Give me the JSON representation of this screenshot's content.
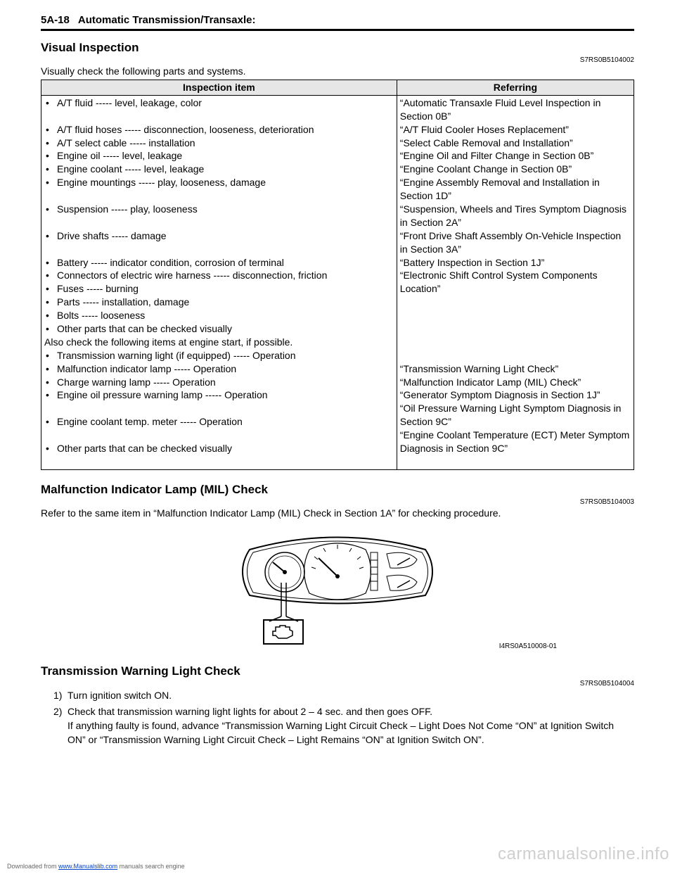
{
  "header": {
    "page_num": "5A-18",
    "title": "Automatic Transmission/Transaxle:"
  },
  "visual_inspection": {
    "heading": "Visual Inspection",
    "code": "S7RS0B5104002",
    "intro": "Visually check the following parts and systems.",
    "table": {
      "col_left": "Inspection item",
      "col_right": "Referring",
      "rows": [
        {
          "item": "A/T fluid ----- level, leakage, color",
          "ref": "“Automatic Transaxle Fluid Level Inspection in Section 0B”"
        },
        {
          "item": "A/T fluid hoses ----- disconnection, looseness, deterioration",
          "ref": "“A/T Fluid Cooler Hoses Replacement”"
        },
        {
          "item": "A/T select cable ----- installation",
          "ref": "“Select Cable Removal and Installation”"
        },
        {
          "item": "Engine oil ----- level, leakage",
          "ref": "“Engine Oil and Filter Change in Section 0B”"
        },
        {
          "item": "Engine coolant ----- level, leakage",
          "ref": "“Engine Coolant Change in Section 0B”"
        },
        {
          "item": "Engine mountings ----- play, looseness, damage",
          "ref": "“Engine Assembly Removal and Installation in Section 1D”"
        },
        {
          "item": "Suspension ----- play, looseness",
          "ref": "“Suspension, Wheels and Tires Symptom Diagnosis in Section 2A”"
        },
        {
          "item": "Drive shafts ----- damage",
          "ref": "“Front Drive Shaft Assembly On-Vehicle Inspection in Section 3A”"
        },
        {
          "item": "Battery ----- indicator condition, corrosion of terminal",
          "ref": "“Battery Inspection in Section 1J”"
        },
        {
          "item": "Connectors of electric wire harness ----- disconnection, friction",
          "ref": "“Electronic Shift Control System Components Location”"
        },
        {
          "item": "Fuses ----- burning",
          "ref": ""
        },
        {
          "item": "Parts ----- installation, damage",
          "ref": ""
        },
        {
          "item": "Bolts ----- looseness",
          "ref": ""
        },
        {
          "item": "Other parts that can be checked visually",
          "ref": ""
        }
      ],
      "mid_text": "Also check the following items at engine start, if possible.",
      "rows2": [
        {
          "item": "Transmission warning light (if equipped) ----- Operation",
          "ref": "“Transmission Warning Light Check”"
        },
        {
          "item": "Malfunction indicator lamp ----- Operation",
          "ref": "“Malfunction Indicator Lamp (MIL) Check”"
        },
        {
          "item": "Charge warning lamp ----- Operation",
          "ref": "“Generator Symptom Diagnosis in Section 1J”"
        },
        {
          "item": "Engine oil pressure warning lamp ----- Operation",
          "ref": "“Oil Pressure Warning Light Symptom Diagnosis in Section 9C”"
        },
        {
          "item": "Engine coolant temp. meter ----- Operation",
          "ref": "“Engine Coolant Temperature (ECT) Meter Symptom Diagnosis in Section 9C”"
        },
        {
          "item": "Other parts that can be checked visually",
          "ref": ""
        }
      ]
    }
  },
  "mil_check": {
    "heading": "Malfunction Indicator Lamp (MIL) Check",
    "code": "S7RS0B5104003",
    "text": "Refer to the same item in “Malfunction Indicator Lamp (MIL) Check in Section 1A” for checking procedure.",
    "fig_code": "I4RS0A510008-01"
  },
  "twlc": {
    "heading": "Transmission Warning Light Check",
    "code": "S7RS0B5104004",
    "steps": [
      "Turn ignition switch ON.",
      "Check that transmission warning light lights for about 2 – 4 sec. and then goes OFF.\nIf anything faulty is found, advance “Transmission Warning Light Circuit Check – Light Does Not Come “ON” at Ignition Switch ON” or “Transmission Warning Light Circuit Check – Light Remains “ON” at Ignition Switch ON”."
    ]
  },
  "footer": {
    "prefix": "Downloaded from ",
    "link_text": "www.Manualslib.com",
    "suffix": " manuals search engine"
  },
  "watermark": "carmanualsonline.info"
}
